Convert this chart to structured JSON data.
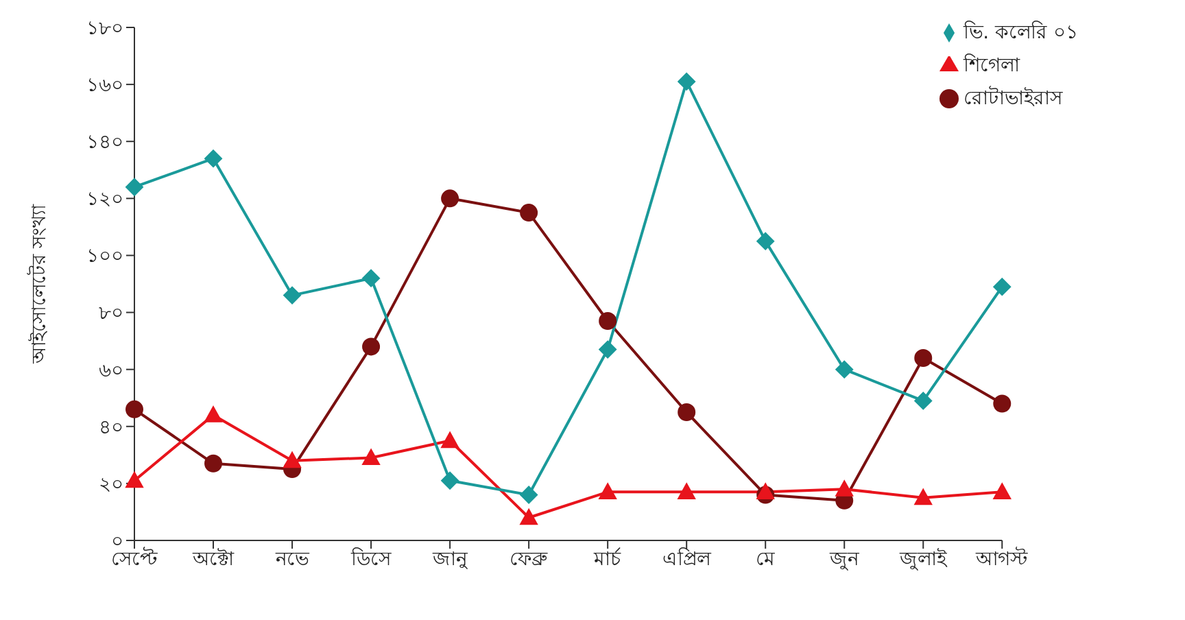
{
  "chart_data": {
    "type": "line",
    "ylabel": "আইসোলেটের সংখ্যা",
    "categories": [
      "সেপ্টে",
      "অক্টো",
      "নভে",
      "ডিসে",
      "জানু",
      "ফেব্রু",
      "মার্চ",
      "এপ্রিল",
      "মে",
      "জুন",
      "জুলাই",
      "আগস্ট"
    ],
    "series": [
      {
        "name": "ভি. কলেরি ০১",
        "color": "#1a9a9a",
        "marker": "diamond",
        "values": [
          124,
          134,
          86,
          92,
          21,
          16,
          67,
          161,
          105,
          60,
          49,
          89
        ]
      },
      {
        "name": "শিগেলা",
        "color": "#e8141c",
        "marker": "triangle",
        "values": [
          21,
          44,
          28,
          29,
          35,
          8,
          17,
          17,
          17,
          18,
          15,
          17
        ]
      },
      {
        "name": "রোটাভাইরাস",
        "color": "#7a1010",
        "marker": "circle",
        "values": [
          46,
          27,
          25,
          68,
          120,
          115,
          77,
          45,
          16,
          14,
          64,
          48
        ]
      }
    ],
    "ylim": [
      0,
      180
    ],
    "yticks": [
      {
        "value": 0,
        "label": "০"
      },
      {
        "value": 20,
        "label": "২০"
      },
      {
        "value": 40,
        "label": "৪০"
      },
      {
        "value": 60,
        "label": "৬০"
      },
      {
        "value": 80,
        "label": "৮০"
      },
      {
        "value": 100,
        "label": "১০০"
      },
      {
        "value": 120,
        "label": "১২০"
      },
      {
        "value": 140,
        "label": "১৪০"
      },
      {
        "value": 160,
        "label": "১৬০"
      },
      {
        "value": 180,
        "label": "১৮০"
      }
    ],
    "grid": false,
    "legend": "top right"
  }
}
